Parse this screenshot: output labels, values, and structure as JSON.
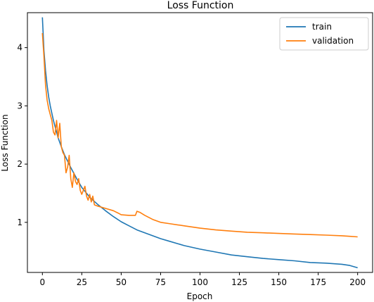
{
  "chart_data": {
    "type": "line",
    "title": "Loss Function",
    "xlabel": "Epoch",
    "ylabel": "Loss Function",
    "xlim": [
      -9.5,
      209.5
    ],
    "ylim": [
      0.14,
      4.6
    ],
    "xticks": [
      0,
      25,
      50,
      75,
      100,
      125,
      150,
      175,
      200
    ],
    "yticks": [
      1,
      2,
      3,
      4
    ],
    "grid": false,
    "legend_position": "top-right",
    "series": [
      {
        "name": "train",
        "color": "#1f77b4",
        "x": [
          0,
          1,
          2,
          3,
          4,
          5,
          6,
          7,
          8,
          9,
          10,
          12,
          14,
          16,
          18,
          20,
          22,
          25,
          28,
          30,
          35,
          40,
          45,
          50,
          55,
          60,
          65,
          70,
          75,
          80,
          90,
          100,
          110,
          120,
          130,
          140,
          150,
          160,
          170,
          180,
          190,
          195,
          200
        ],
        "y": [
          4.52,
          3.95,
          3.6,
          3.35,
          3.15,
          3.0,
          2.87,
          2.75,
          2.65,
          2.55,
          2.45,
          2.3,
          2.16,
          2.05,
          1.94,
          1.84,
          1.74,
          1.6,
          1.5,
          1.43,
          1.31,
          1.2,
          1.1,
          1.01,
          0.94,
          0.87,
          0.82,
          0.77,
          0.72,
          0.68,
          0.6,
          0.54,
          0.49,
          0.44,
          0.41,
          0.38,
          0.36,
          0.34,
          0.31,
          0.3,
          0.28,
          0.26,
          0.22
        ]
      },
      {
        "name": "validation",
        "color": "#ff7f0e",
        "x": [
          0,
          1,
          2,
          3,
          4,
          5,
          6,
          7,
          8,
          9,
          10,
          11,
          12,
          13,
          14,
          15,
          16,
          17,
          18,
          19,
          20,
          21,
          22,
          23,
          24,
          25,
          26,
          27,
          28,
          29,
          30,
          31,
          32,
          33,
          35,
          40,
          45,
          48,
          50,
          55,
          59,
          60,
          62,
          65,
          70,
          75,
          80,
          90,
          100,
          110,
          120,
          130,
          140,
          150,
          160,
          170,
          180,
          190,
          195,
          200
        ],
        "y": [
          4.25,
          3.85,
          3.35,
          3.1,
          2.95,
          2.85,
          2.75,
          2.55,
          2.5,
          2.75,
          2.45,
          2.7,
          2.3,
          2.2,
          2.15,
          1.85,
          1.95,
          2.15,
          1.75,
          1.6,
          1.85,
          1.7,
          1.65,
          1.75,
          1.55,
          1.48,
          1.55,
          1.62,
          1.45,
          1.38,
          1.48,
          1.35,
          1.45,
          1.3,
          1.28,
          1.24,
          1.2,
          1.16,
          1.13,
          1.12,
          1.12,
          1.19,
          1.17,
          1.12,
          1.05,
          1.0,
          0.98,
          0.94,
          0.9,
          0.87,
          0.85,
          0.83,
          0.82,
          0.81,
          0.8,
          0.79,
          0.78,
          0.77,
          0.76,
          0.75
        ]
      }
    ]
  }
}
